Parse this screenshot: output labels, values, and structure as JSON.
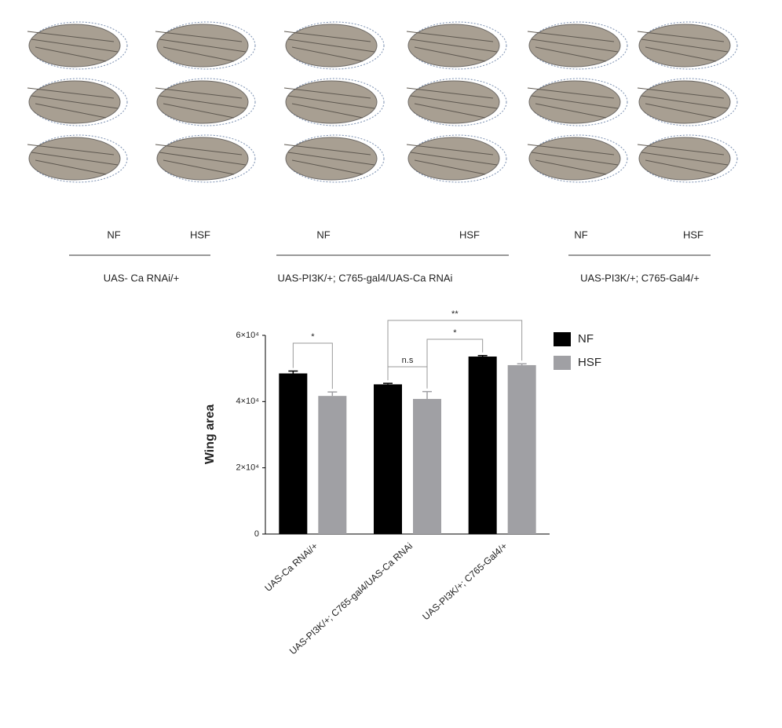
{
  "panel": {
    "conditions": [
      "NF",
      "HSF",
      "NF",
      "HSF",
      "NF",
      "HSF"
    ],
    "groups": [
      "UAS- Ca RNAi/+",
      "UAS-PI3K/+; C765-gal4/UAS-Ca RNAi",
      "UAS-PI3K/+; C765-Gal4/+"
    ]
  },
  "chart_data": {
    "type": "bar",
    "y_label": "Wing area",
    "categories": [
      "UAS-Ca RNAi/+",
      "UAS-PI3K/+; C765-gal4/UAS-Ca RNAi",
      "UAS-PI3K/+; C765-Gal4/+"
    ],
    "series": [
      {
        "name": "NF",
        "color": "#000000",
        "values": [
          48500,
          45200,
          53600
        ],
        "errors": [
          700,
          300,
          300
        ]
      },
      {
        "name": "HSF",
        "color": "#a0a0a4",
        "values": [
          41700,
          40800,
          51000
        ],
        "errors": [
          1200,
          2200,
          400
        ]
      }
    ],
    "ylim": [
      0,
      60000
    ],
    "yticks": [
      0,
      {
        "value": 20000,
        "label": "2×10⁴"
      },
      {
        "value": 40000,
        "label": "4×10⁴"
      },
      {
        "value": 60000,
        "label": "6×10⁴"
      }
    ],
    "annotations": [
      "*",
      "n.s",
      "*",
      "**"
    ],
    "legend": "upper right"
  }
}
